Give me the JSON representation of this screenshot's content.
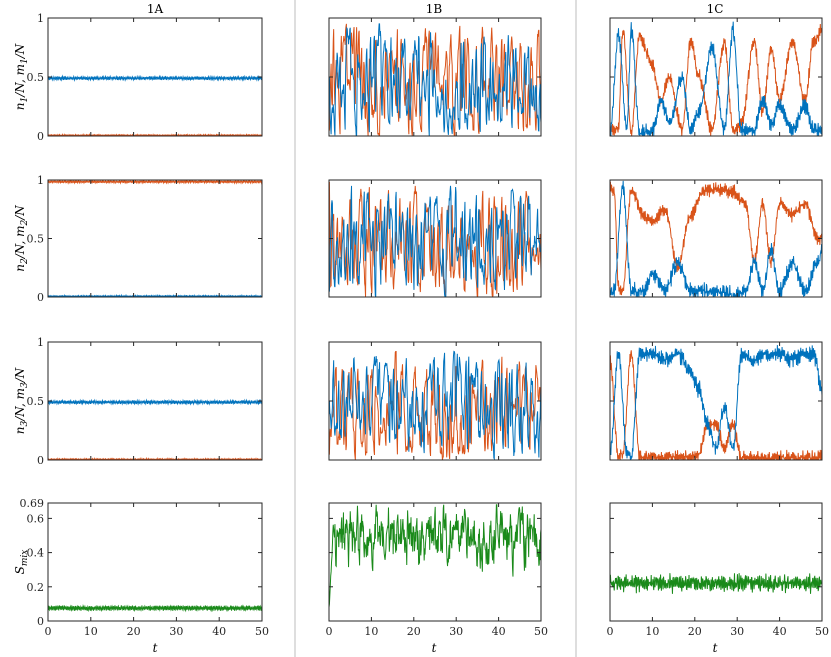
{
  "colors": {
    "series_a": "#0072BD",
    "series_b": "#D95319",
    "entropy": "#1a8a1a",
    "axis": "#262626",
    "divider": "#c8c8c8"
  },
  "chart_data": {
    "type": "line",
    "layout": "grid 4 rows x 3 columns",
    "column_titles": [
      "1A",
      "1B",
      "1C"
    ],
    "xlabel": "t",
    "xlim": [
      0,
      50
    ],
    "xticks": [
      0,
      10,
      20,
      30,
      40,
      50
    ],
    "row_ylabels": [
      {
        "main": "n",
        "sub": "1",
        "rest": "/N,   ",
        "main2": "m",
        "sub2": "1",
        "rest2": "/N"
      },
      {
        "main": "n",
        "sub": "2",
        "rest": "/N,   ",
        "main2": "m",
        "sub2": "2",
        "rest2": "/N"
      },
      {
        "main": "n",
        "sub": "3",
        "rest": "/N,   ",
        "main2": "m",
        "sub2": "3",
        "rest2": "/N"
      },
      {
        "main": "S",
        "sub": "mix",
        "rest": "",
        "main2": "",
        "sub2": "",
        "rest2": ""
      }
    ],
    "ylim_population": [
      0,
      1
    ],
    "yticks_population": [
      "0",
      "0.5",
      "1"
    ],
    "ylim_entropy": [
      0,
      0.69
    ],
    "yticks_entropy": [
      "0",
      "0.2",
      "0.4",
      "0.6",
      "0.69"
    ],
    "panels": {
      "1A": {
        "row1": {
          "series_a_mean": 0.49,
          "series_a_jitter": 0.012,
          "series_b_mean": 0.005,
          "series_b_jitter": 0.006
        },
        "row2": {
          "series_a_mean": 0.006,
          "series_a_jitter": 0.006,
          "series_b_mean": 0.985,
          "series_b_jitter": 0.008
        },
        "row3": {
          "series_a_mean": 0.49,
          "series_a_jitter": 0.012,
          "series_b_mean": 0.005,
          "series_b_jitter": 0.006
        },
        "row4": {
          "entropy_mean": 0.075,
          "entropy_jitter": 0.012
        }
      },
      "1B": {
        "row1": {
          "series_a_start": 0.5,
          "series_b_start": 0.05,
          "range": [
            0.0,
            0.95
          ]
        },
        "row2": {
          "series_a_start": 0.05,
          "series_b_start": 0.98,
          "range": [
            0.0,
            0.95
          ]
        },
        "row3": {
          "series_a_start": 0.5,
          "series_b_start": 0.05,
          "range": [
            0.0,
            0.92
          ]
        },
        "row4": {
          "entropy_start": 0.08,
          "entropy_mean": 0.48,
          "range": [
            0.08,
            0.68
          ]
        }
      },
      "1C": {
        "row1": {
          "series_a_envelope": [
            [
              0,
              0.02
            ],
            [
              2,
              0.85
            ],
            [
              4,
              0.05
            ],
            [
              5,
              0.9
            ],
            [
              7,
              0.03
            ],
            [
              10,
              0.05
            ],
            [
              12,
              0.3
            ],
            [
              14,
              0.1
            ],
            [
              17,
              0.5
            ],
            [
              19,
              0.05
            ],
            [
              21,
              0.2
            ],
            [
              24,
              0.75
            ],
            [
              27,
              0.05
            ],
            [
              29,
              0.9
            ],
            [
              31,
              0.05
            ],
            [
              34,
              0.05
            ],
            [
              36,
              0.3
            ],
            [
              38,
              0.1
            ],
            [
              40,
              0.25
            ],
            [
              43,
              0.05
            ],
            [
              46,
              0.25
            ],
            [
              48,
              0.05
            ],
            [
              50,
              0.05
            ]
          ],
          "series_b_envelope": [
            [
              0,
              0.05
            ],
            [
              2,
              0.05
            ],
            [
              3,
              0.9
            ],
            [
              5,
              0.05
            ],
            [
              7,
              0.85
            ],
            [
              10,
              0.6
            ],
            [
              12,
              0.3
            ],
            [
              14,
              0.5
            ],
            [
              17,
              0.05
            ],
            [
              19,
              0.8
            ],
            [
              21,
              0.5
            ],
            [
              24,
              0.05
            ],
            [
              27,
              0.8
            ],
            [
              29,
              0.05
            ],
            [
              31,
              0.1
            ],
            [
              34,
              0.8
            ],
            [
              36,
              0.2
            ],
            [
              38,
              0.75
            ],
            [
              40,
              0.3
            ],
            [
              43,
              0.8
            ],
            [
              46,
              0.3
            ],
            [
              48,
              0.8
            ],
            [
              50,
              0.9
            ]
          ]
        },
        "row2": {
          "series_a_envelope": [
            [
              0,
              0.02
            ],
            [
              1,
              0.05
            ],
            [
              3,
              0.95
            ],
            [
              5,
              0.05
            ],
            [
              8,
              0.05
            ],
            [
              10,
              0.2
            ],
            [
              13,
              0.05
            ],
            [
              16,
              0.3
            ],
            [
              19,
              0.05
            ],
            [
              22,
              0.05
            ],
            [
              25,
              0.05
            ],
            [
              29,
              0.02
            ],
            [
              32,
              0.05
            ],
            [
              34,
              0.3
            ],
            [
              36,
              0.05
            ],
            [
              38,
              0.4
            ],
            [
              40,
              0.05
            ],
            [
              43,
              0.3
            ],
            [
              46,
              0.05
            ],
            [
              49,
              0.3
            ],
            [
              50,
              0.4
            ]
          ],
          "series_b_envelope": [
            [
              0,
              0.95
            ],
            [
              1,
              0.9
            ],
            [
              2,
              0.1
            ],
            [
              3,
              0.05
            ],
            [
              5,
              0.9
            ],
            [
              8,
              0.7
            ],
            [
              10,
              0.65
            ],
            [
              13,
              0.75
            ],
            [
              16,
              0.25
            ],
            [
              19,
              0.7
            ],
            [
              22,
              0.9
            ],
            [
              25,
              0.92
            ],
            [
              29,
              0.9
            ],
            [
              32,
              0.8
            ],
            [
              34,
              0.3
            ],
            [
              36,
              0.8
            ],
            [
              38,
              0.3
            ],
            [
              40,
              0.8
            ],
            [
              43,
              0.7
            ],
            [
              46,
              0.8
            ],
            [
              49,
              0.5
            ],
            [
              50,
              0.5
            ]
          ]
        },
        "row3": {
          "series_a_envelope": [
            [
              0,
              0.05
            ],
            [
              2,
              0.9
            ],
            [
              4,
              0.05
            ],
            [
              5,
              0.02
            ],
            [
              7,
              0.9
            ],
            [
              10,
              0.9
            ],
            [
              13,
              0.85
            ],
            [
              16,
              0.9
            ],
            [
              19,
              0.75
            ],
            [
              21,
              0.6
            ],
            [
              23,
              0.3
            ],
            [
              25,
              0.1
            ],
            [
              27,
              0.45
            ],
            [
              29,
              0.1
            ],
            [
              31,
              0.9
            ],
            [
              34,
              0.85
            ],
            [
              37,
              0.9
            ],
            [
              40,
              0.9
            ],
            [
              43,
              0.85
            ],
            [
              46,
              0.9
            ],
            [
              48,
              0.9
            ],
            [
              50,
              0.6
            ]
          ],
          "series_b_envelope": [
            [
              0,
              0.85
            ],
            [
              2,
              0.02
            ],
            [
              3,
              0.05
            ],
            [
              5,
              0.9
            ],
            [
              7,
              0.02
            ],
            [
              10,
              0.02
            ],
            [
              13,
              0.02
            ],
            [
              16,
              0.02
            ],
            [
              19,
              0.02
            ],
            [
              21,
              0.05
            ],
            [
              23,
              0.3
            ],
            [
              25,
              0.3
            ],
            [
              27,
              0.1
            ],
            [
              29,
              0.3
            ],
            [
              31,
              0.02
            ],
            [
              34,
              0.02
            ],
            [
              40,
              0.02
            ],
            [
              50,
              0.02
            ]
          ]
        },
        "row4": {
          "entropy_mean": 0.22,
          "entropy_jitter": 0.03
        }
      }
    },
    "grid": false,
    "legend": "none"
  }
}
